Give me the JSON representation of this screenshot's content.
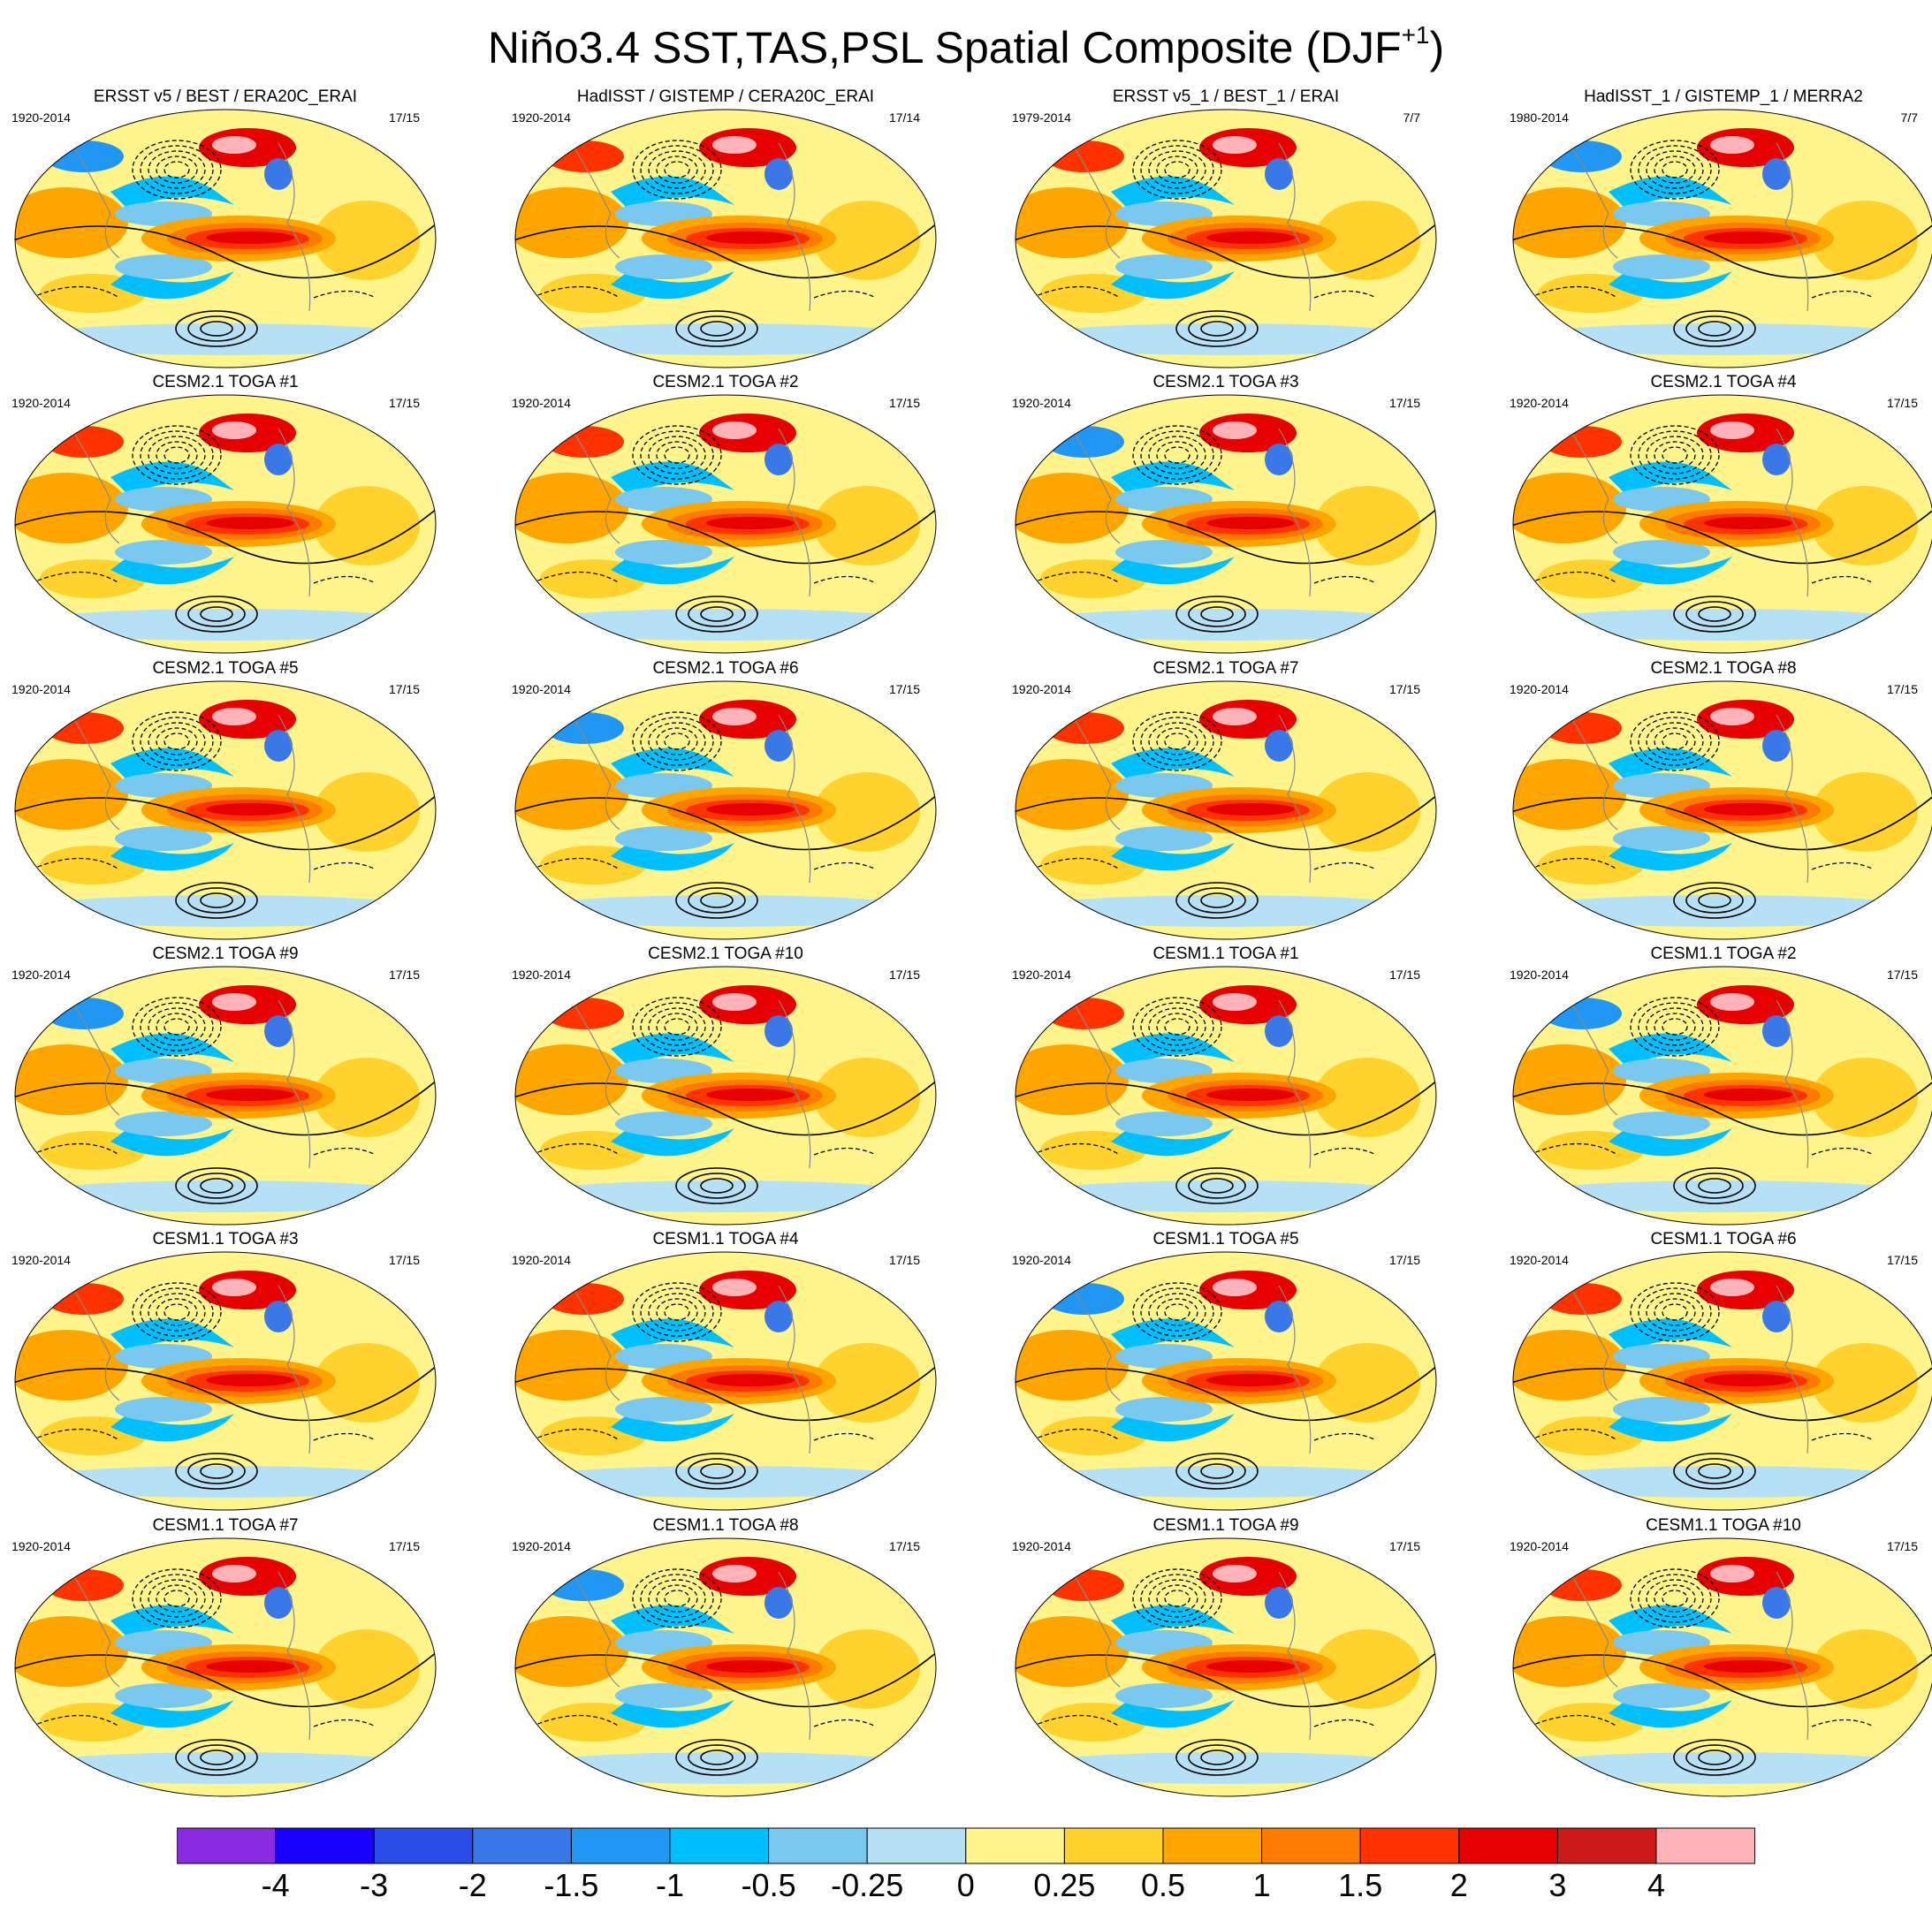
{
  "title": {
    "main": "Niño3.4 SST,TAS,PSL Spatial Composite (DJF",
    "sup": "+1",
    "close": ")"
  },
  "panels": [
    {
      "title": "ERSST v5 / BEST / ERA20C_ERAI",
      "years": "1920-2014",
      "count": "17/15"
    },
    {
      "title": "HadISST / GISTEMP / CERA20C_ERAI",
      "years": "1920-2014",
      "count": "17/14"
    },
    {
      "title": "ERSST v5_1 / BEST_1 / ERAI",
      "years": "1979-2014",
      "count": "7/7"
    },
    {
      "title": "HadISST_1 / GISTEMP_1 / MERRA2",
      "years": "1980-2014",
      "count": "7/7"
    },
    {
      "title": "CESM2.1 TOGA #1",
      "years": "1920-2014",
      "count": "17/15"
    },
    {
      "title": "CESM2.1 TOGA #2",
      "years": "1920-2014",
      "count": "17/15"
    },
    {
      "title": "CESM2.1 TOGA #3",
      "years": "1920-2014",
      "count": "17/15"
    },
    {
      "title": "CESM2.1 TOGA #4",
      "years": "1920-2014",
      "count": "17/15"
    },
    {
      "title": "CESM2.1 TOGA #5",
      "years": "1920-2014",
      "count": "17/15"
    },
    {
      "title": "CESM2.1 TOGA #6",
      "years": "1920-2014",
      "count": "17/15"
    },
    {
      "title": "CESM2.1 TOGA #7",
      "years": "1920-2014",
      "count": "17/15"
    },
    {
      "title": "CESM2.1 TOGA #8",
      "years": "1920-2014",
      "count": "17/15"
    },
    {
      "title": "CESM2.1 TOGA #9",
      "years": "1920-2014",
      "count": "17/15"
    },
    {
      "title": "CESM2.1 TOGA #10",
      "years": "1920-2014",
      "count": "17/15"
    },
    {
      "title": "CESM1.1 TOGA #1",
      "years": "1920-2014",
      "count": "17/15"
    },
    {
      "title": "CESM1.1 TOGA #2",
      "years": "1920-2014",
      "count": "17/15"
    },
    {
      "title": "CESM1.1 TOGA #3",
      "years": "1920-2014",
      "count": "17/15"
    },
    {
      "title": "CESM1.1 TOGA #4",
      "years": "1920-2014",
      "count": "17/15"
    },
    {
      "title": "CESM1.1 TOGA #5",
      "years": "1920-2014",
      "count": "17/15"
    },
    {
      "title": "CESM1.1 TOGA #6",
      "years": "1920-2014",
      "count": "17/15"
    },
    {
      "title": "CESM1.1 TOGA #7",
      "years": "1920-2014",
      "count": "17/15"
    },
    {
      "title": "CESM1.1 TOGA #8",
      "years": "1920-2014",
      "count": "17/15"
    },
    {
      "title": "CESM1.1 TOGA #9",
      "years": "1920-2014",
      "count": "17/15"
    },
    {
      "title": "CESM1.1 TOGA #10",
      "years": "1920-2014",
      "count": "17/15"
    }
  ],
  "chart_data": {
    "type": "heatmap",
    "layout": "6 rows x 4 columns of global map panels",
    "projection": "global equal-area ellipse, Pacific-centered",
    "fields": {
      "shaded": "SST/TAS composite anomaly",
      "contours": "PSL composite anomaly (solid positive, dashed negative)"
    },
    "colorbar": {
      "tick_labels": [
        "-4",
        "-3",
        "-2",
        "-1.5",
        "-1",
        "-0.5",
        "-0.25",
        "0",
        "0.25",
        "0.5",
        "1",
        "1.5",
        "2",
        "3",
        "4"
      ],
      "colors": [
        "#8a2be2",
        "#1a00ff",
        "#2a4de8",
        "#3a78e8",
        "#2196f3",
        "#00bfff",
        "#7ac8f0",
        "#b5e0f5",
        "#fff58c",
        "#ffd22e",
        "#ffa500",
        "#ff7a00",
        "#ff3300",
        "#e60000",
        "#cc1a1a",
        "#ffb3b8"
      ]
    }
  }
}
